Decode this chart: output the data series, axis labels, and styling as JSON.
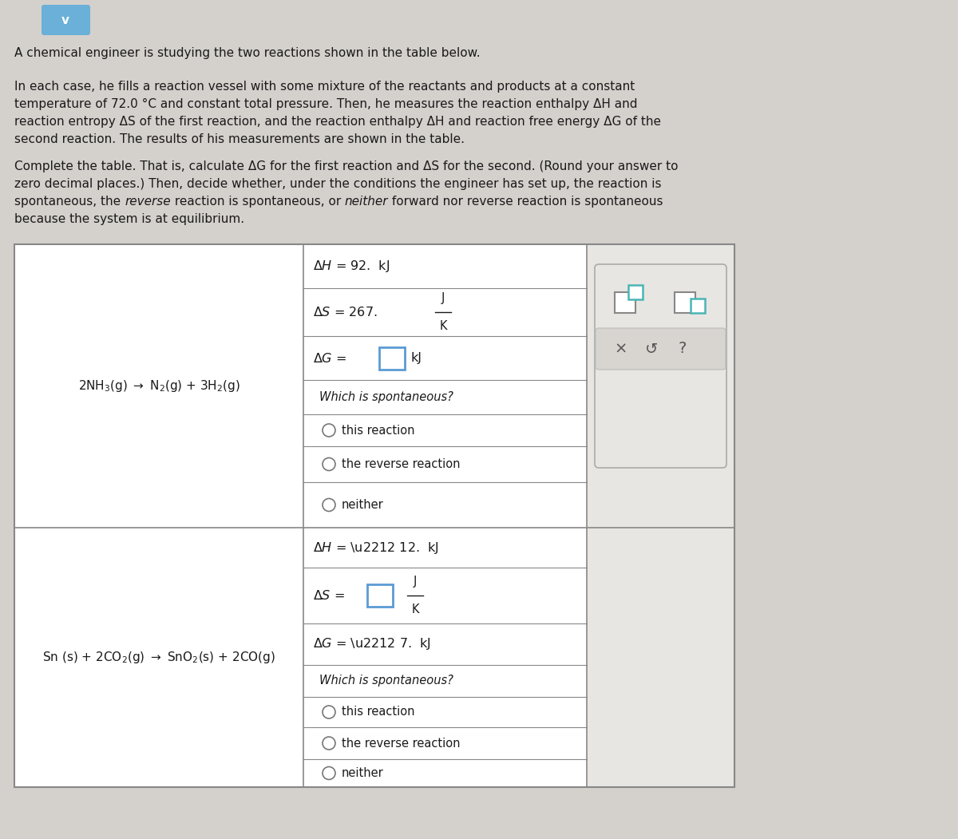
{
  "bg_color": "#d4d0cc",
  "white": "#ffffff",
  "cell_bg": "#f5f4f2",
  "right_col_bg": "#e8e6e2",
  "text_color": "#1a1a1a",
  "border_color": "#888888",
  "blue_box_color": "#5b9bd5",
  "teal_box_color": "#4ab5b5",
  "icon_gray": "#666666",
  "para1": "A chemical engineer is studying the two reactions shown in the table below.",
  "para2_lines": [
    "In each case, he fills a reaction vessel with some mixture of the reactants and products at a constant",
    "temperature of 72.0 °C and constant total pressure. Then, he measures the reaction enthalpy ΔH and",
    "reaction entropy ΔS of the first reaction, and the reaction enthalpy ΔH and reaction free energy ΔG of the",
    "second reaction. The results of his measurements are shown in the table."
  ],
  "para3_lines": [
    "Complete the table. That is, calculate ΔG for the first reaction and ΔS for the second. (Round your answer to",
    "zero decimal places.) Then, decide whether, under the conditions the engineer has set up, the reaction is",
    "spontaneous, the reverse reaction is spontaneous, or neither forward nor reverse reaction is spontaneous",
    "because the system is at equilibrium."
  ],
  "rxn1_dH": "ΔH =  92.  kJ",
  "rxn1_dS_pre": "ΔS =  267.   ",
  "rxn1_dG_pre": "ΔG = ",
  "rxn1_dG_unit": " kJ",
  "rxn2_dH": "ΔH =  − 12.  kJ",
  "rxn2_dS_pre": "ΔS = ",
  "rxn2_dG": "ΔG =  − 7.  kJ",
  "spont_label": "Which is spontaneous?",
  "opt1": "this reaction",
  "opt2": "the reverse reaction",
  "opt3": "neither",
  "frac_num": "J",
  "frac_den": "K"
}
